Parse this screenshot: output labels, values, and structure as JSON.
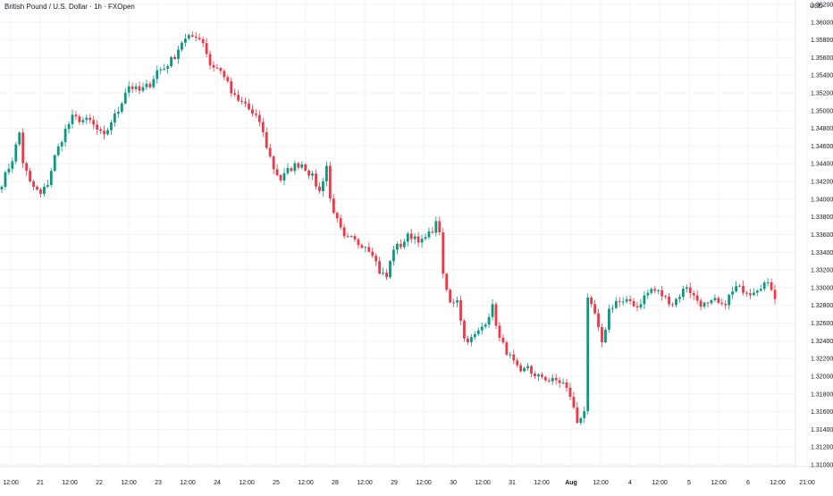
{
  "header": {
    "title": "British Pound / U.S. Dollar · 1h · FXOpen",
    "currency": "USD"
  },
  "colors": {
    "up": "#089981",
    "down": "#f23645",
    "grid": "#f0f3fa",
    "axis_text": "#131722",
    "background": "#ffffff"
  },
  "chart_data": {
    "type": "candlestick",
    "title": "British Pound / U.S. Dollar · 1h · FXOpen",
    "ylabel": "USD",
    "ylim": [
      1.3098,
      1.3625
    ],
    "grid": true,
    "y_ticks": [
      "1.36200",
      "1.36000",
      "1.35800",
      "1.35600",
      "1.35400",
      "1.35200",
      "1.35000",
      "1.34800",
      "1.34600",
      "1.34400",
      "1.34200",
      "1.34000",
      "1.33800",
      "1.33600",
      "1.33400",
      "1.33200",
      "1.33000",
      "1.32800",
      "1.32600",
      "1.32400",
      "1.32200",
      "1.32000",
      "1.31800",
      "1.31600",
      "1.31400",
      "1.31200",
      "1.31000"
    ],
    "x_ticks": [
      "12:00",
      "21",
      "12:00",
      "22",
      "12:00",
      "23",
      "12:00",
      "24",
      "12:00",
      "25",
      "12:00",
      "28",
      "12:00",
      "29",
      "12:00",
      "30",
      "12:00",
      "31",
      "12:00",
      "Aug",
      "12:00",
      "4",
      "12:00",
      "5",
      "12:00",
      "6",
      "12:00",
      "21:00"
    ],
    "x_ticks_bold": [
      "Aug"
    ],
    "price_path": [
      [
        0,
        1.3418
      ],
      [
        3,
        1.3445
      ],
      [
        5,
        1.3475
      ],
      [
        6,
        1.3442
      ],
      [
        8,
        1.3418
      ],
      [
        11,
        1.3405
      ],
      [
        13,
        1.3418
      ],
      [
        15,
        1.3448
      ],
      [
        18,
        1.3478
      ],
      [
        20,
        1.3492
      ],
      [
        22,
        1.349
      ],
      [
        25,
        1.3488
      ],
      [
        27,
        1.3478
      ],
      [
        29,
        1.347
      ],
      [
        31,
        1.3488
      ],
      [
        33,
        1.35
      ],
      [
        35,
        1.3522
      ],
      [
        36,
        1.3528
      ],
      [
        39,
        1.3522
      ],
      [
        42,
        1.353
      ],
      [
        44,
        1.3545
      ],
      [
        46,
        1.3548
      ],
      [
        49,
        1.3562
      ],
      [
        51,
        1.3578
      ],
      [
        53,
        1.3582
      ],
      [
        55,
        1.3585
      ],
      [
        57,
        1.3578
      ],
      [
        59,
        1.3552
      ],
      [
        61,
        1.3548
      ],
      [
        63,
        1.354
      ],
      [
        65,
        1.352
      ],
      [
        67,
        1.351
      ],
      [
        69,
        1.3508
      ],
      [
        71,
        1.3495
      ],
      [
        73,
        1.3488
      ],
      [
        75,
        1.346
      ],
      [
        77,
        1.3435
      ],
      [
        79,
        1.3422
      ],
      [
        81,
        1.3432
      ],
      [
        83,
        1.3438
      ],
      [
        85,
        1.344
      ],
      [
        88,
        1.3425
      ],
      [
        90,
        1.3408
      ],
      [
        92,
        1.3438
      ],
      [
        93,
        1.34
      ],
      [
        95,
        1.3375
      ],
      [
        97,
        1.3355
      ],
      [
        99,
        1.3355
      ],
      [
        101,
        1.335
      ],
      [
        103,
        1.3348
      ],
      [
        105,
        1.334
      ],
      [
        107,
        1.3318
      ],
      [
        109,
        1.3312
      ],
      [
        111,
        1.3345
      ],
      [
        113,
        1.3348
      ],
      [
        115,
        1.3358
      ],
      [
        117,
        1.3358
      ],
      [
        119,
        1.3352
      ],
      [
        121,
        1.336
      ],
      [
        123,
        1.3372
      ],
      [
        124,
        1.3365
      ],
      [
        125,
        1.3312
      ],
      [
        127,
        1.3282
      ],
      [
        129,
        1.3288
      ],
      [
        131,
        1.3242
      ],
      [
        133,
        1.3242
      ],
      [
        135,
        1.325
      ],
      [
        137,
        1.3262
      ],
      [
        139,
        1.3278
      ],
      [
        141,
        1.3242
      ],
      [
        143,
        1.3228
      ],
      [
        145,
        1.3215
      ],
      [
        147,
        1.3202
      ],
      [
        149,
        1.3212
      ],
      [
        151,
        1.3198
      ],
      [
        153,
        1.32
      ],
      [
        155,
        1.3195
      ],
      [
        157,
        1.3195
      ],
      [
        159,
        1.3192
      ],
      [
        161,
        1.3178
      ],
      [
        163,
        1.3148
      ],
      [
        165,
        1.3162
      ],
      [
        166,
        1.3285
      ],
      [
        168,
        1.327
      ],
      [
        170,
        1.3235
      ],
      [
        172,
        1.3275
      ],
      [
        174,
        1.3285
      ],
      [
        176,
        1.3282
      ],
      [
        178,
        1.3285
      ],
      [
        180,
        1.3278
      ],
      [
        182,
        1.329
      ],
      [
        184,
        1.3298
      ],
      [
        186,
        1.3295
      ],
      [
        188,
        1.3288
      ],
      [
        190,
        1.3282
      ],
      [
        192,
        1.3292
      ],
      [
        194,
        1.3302
      ],
      [
        196,
        1.329
      ],
      [
        198,
        1.3282
      ],
      [
        200,
        1.328
      ],
      [
        202,
        1.3285
      ],
      [
        204,
        1.3278
      ],
      [
        206,
        1.329
      ],
      [
        208,
        1.33
      ],
      [
        210,
        1.3298
      ],
      [
        212,
        1.3295
      ],
      [
        214,
        1.33
      ],
      [
        216,
        1.3305
      ],
      [
        218,
        1.33
      ],
      [
        219,
        1.329
      ]
    ]
  }
}
